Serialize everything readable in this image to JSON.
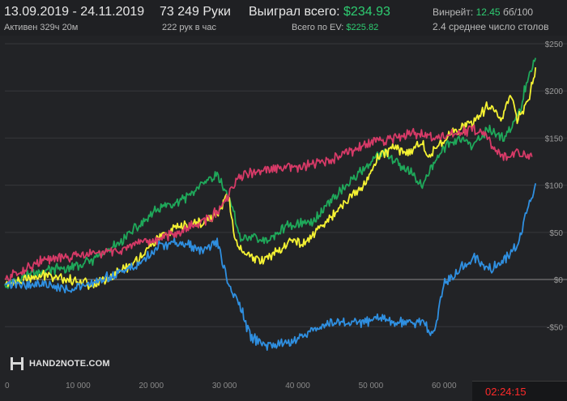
{
  "header": {
    "date_range": "13.09.2019 - 24.11.2019",
    "active_time": "Активен 329ч 20м",
    "hands": "73 249 Руки",
    "hands_per_hour": "222 рук в час",
    "won_label": "Выиграл всего:",
    "won_value": "$234.93",
    "ev_label": "Всего по EV:",
    "ev_value": "$225.82",
    "winrate_label": "Винрейт:",
    "winrate_value": "12.45",
    "winrate_unit": "бб/100",
    "tables": "2.4 среднее число столов"
  },
  "logo": {
    "text": "HAND2NOTE.COM"
  },
  "timer": {
    "text": "02:24:15"
  },
  "colors": {
    "green": "#1fa85a",
    "yellow": "#f5f233",
    "pink": "#d63a67",
    "blue": "#2f8fe0",
    "accent_green_text": "#2ecc71",
    "timer_red": "#ff2a2a"
  },
  "chart_data": {
    "type": "line",
    "xlim": [
      0,
      73249
    ],
    "ylim": [
      -85,
      250
    ],
    "x_ticks": [
      0,
      10000,
      20000,
      30000,
      40000,
      50000,
      60000
    ],
    "x_tick_labels": [
      "0",
      "10 000",
      "20 000",
      "30 000",
      "40 000",
      "50 000",
      "60 000"
    ],
    "y_ticks": [
      -50,
      0,
      50,
      100,
      150,
      200,
      250
    ],
    "y_tick_labels": [
      "-$50",
      "$0",
      "$50",
      "$100",
      "$150",
      "$200",
      "$250"
    ],
    "grid": true,
    "series": [
      {
        "color": "green",
        "x": [
          0,
          3000,
          6000,
          9000,
          12000,
          15000,
          18000,
          21000,
          24000,
          27000,
          29000,
          31000,
          32000,
          34000,
          36000,
          38000,
          40000,
          42000,
          44000,
          46000,
          48000,
          50000,
          52000,
          54000,
          56000,
          57000,
          58000,
          60000,
          62000,
          64000,
          66000,
          68000,
          70000,
          71500,
          72500
        ],
        "y": [
          -5,
          5,
          10,
          12,
          20,
          35,
          55,
          75,
          82,
          100,
          110,
          80,
          45,
          45,
          40,
          55,
          60,
          60,
          80,
          95,
          110,
          125,
          135,
          120,
          110,
          100,
          115,
          140,
          150,
          140,
          160,
          150,
          170,
          215,
          235
        ]
      },
      {
        "color": "yellow",
        "x": [
          0,
          3000,
          6000,
          9000,
          12000,
          15000,
          18000,
          21000,
          24000,
          27000,
          29000,
          30500,
          31500,
          33000,
          35000,
          37000,
          39000,
          41000,
          43000,
          45000,
          47000,
          49000,
          51000,
          53000,
          55000,
          57000,
          58000,
          60000,
          62000,
          64000,
          66000,
          68000,
          69000,
          70000,
          71500,
          72500
        ],
        "y": [
          -5,
          0,
          5,
          0,
          -5,
          5,
          20,
          45,
          55,
          60,
          70,
          90,
          40,
          25,
          20,
          30,
          40,
          40,
          55,
          70,
          85,
          100,
          130,
          140,
          135,
          145,
          130,
          150,
          160,
          165,
          185,
          170,
          200,
          170,
          190,
          225
        ]
      },
      {
        "color": "pink",
        "x": [
          0,
          5000,
          10000,
          15000,
          20000,
          25000,
          28000,
          30000,
          32000,
          35000,
          38000,
          41000,
          44000,
          47000,
          50000,
          53000,
          56000,
          59000,
          62000,
          64000,
          66000,
          67000,
          68000,
          70000,
          72000
        ],
        "y": [
          0,
          20,
          25,
          30,
          40,
          55,
          65,
          80,
          110,
          115,
          118,
          120,
          125,
          135,
          145,
          150,
          155,
          150,
          155,
          160,
          150,
          135,
          130,
          135,
          130
        ]
      },
      {
        "color": "blue",
        "x": [
          0,
          3000,
          6000,
          9000,
          12000,
          15000,
          18000,
          21000,
          24000,
          27000,
          29000,
          30500,
          32000,
          33500,
          35000,
          37000,
          39000,
          41000,
          43000,
          45000,
          47000,
          49000,
          51000,
          53000,
          55000,
          57000,
          58500,
          60000,
          62000,
          64000,
          66000,
          68000,
          70000,
          71500,
          72500
        ],
        "y": [
          -5,
          -5,
          -5,
          -10,
          -5,
          5,
          15,
          35,
          40,
          30,
          40,
          -5,
          -25,
          -60,
          -68,
          -70,
          -65,
          -60,
          -50,
          -45,
          -45,
          -45,
          -40,
          -45,
          -45,
          -45,
          -60,
          -5,
          10,
          25,
          10,
          20,
          35,
          75,
          102
        ]
      }
    ]
  }
}
